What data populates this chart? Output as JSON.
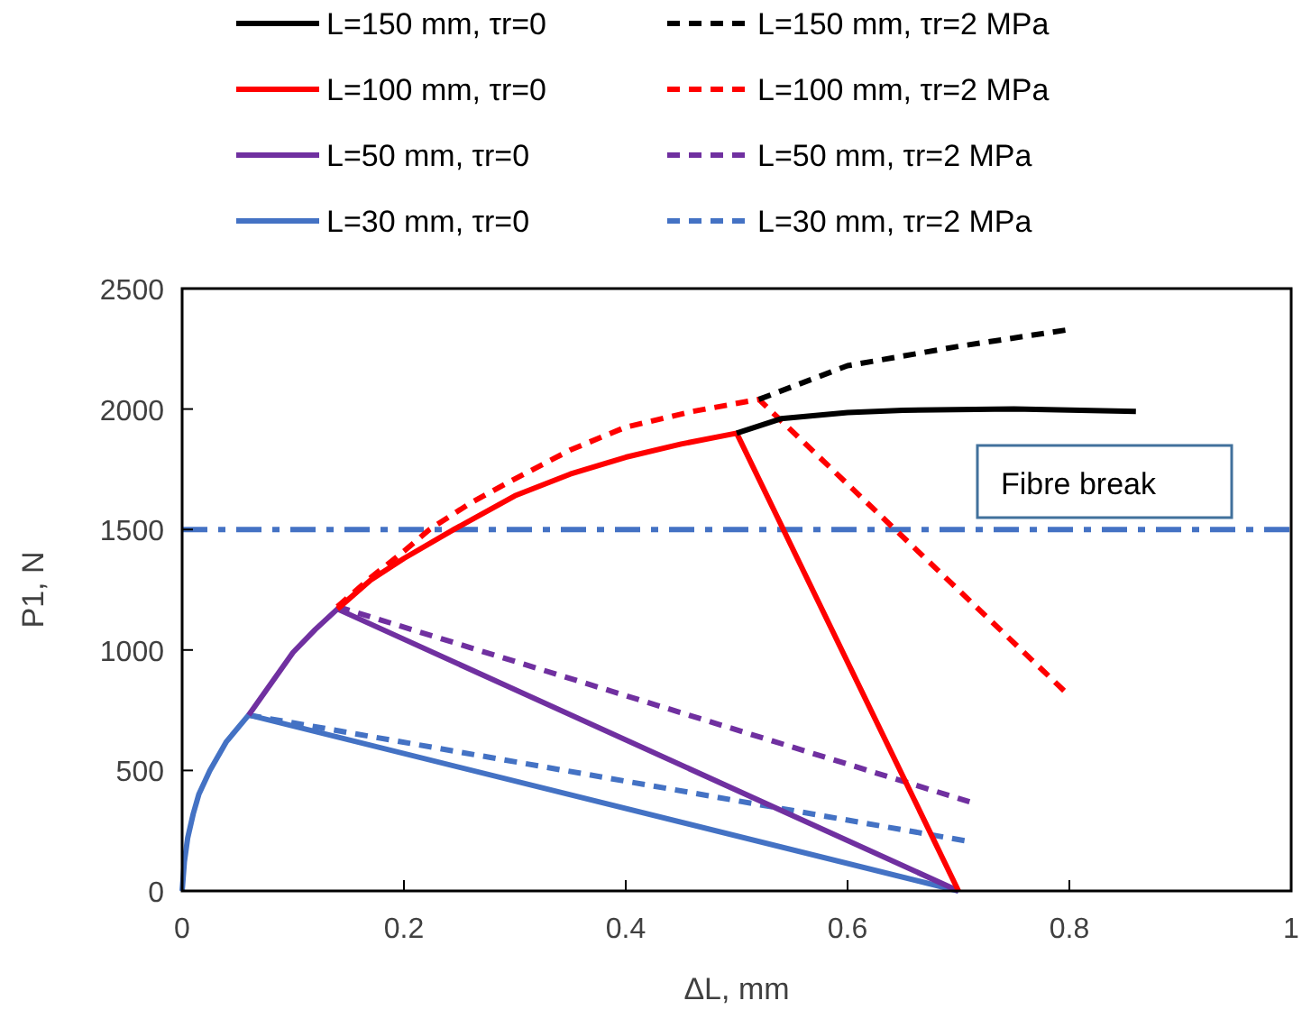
{
  "chart_data": {
    "type": "line",
    "xlabel": "ΔL, mm",
    "ylabel": "P1, N",
    "xlim": [
      0,
      1
    ],
    "xticks": [
      0,
      0.2,
      0.4,
      0.6,
      0.8,
      1
    ],
    "ylim": [
      0,
      2500
    ],
    "yticks": [
      0,
      500,
      1000,
      1500,
      2000,
      2500
    ],
    "grid": false,
    "legend": "top",
    "marker": "none",
    "series": [
      {
        "name": "L=150 mm, τr=0",
        "color": "#000000",
        "line_style": "solid",
        "x": [
          0.5,
          0.54,
          0.6,
          0.65,
          0.75,
          0.86
        ],
        "values": [
          1900,
          1960,
          1985,
          1995,
          2000,
          1990
        ]
      },
      {
        "name": "L=150 mm, τr=2 MPa",
        "color": "#000000",
        "line_style": "dashed",
        "x": [
          0.52,
          0.6,
          0.7,
          0.8
        ],
        "values": [
          2040,
          2180,
          2260,
          2330
        ]
      },
      {
        "name": "L=100 mm, τr=0",
        "color": "#ff0000",
        "line_style": "solid",
        "x": [
          0.14,
          0.17,
          0.2,
          0.245,
          0.3,
          0.35,
          0.4,
          0.45,
          0.5,
          0.7
        ],
        "values": [
          1170,
          1290,
          1380,
          1500,
          1640,
          1730,
          1800,
          1855,
          1900,
          0
        ]
      },
      {
        "name": "L=100 mm, τr=2 MPa",
        "color": "#ff0000",
        "line_style": "dashed",
        "x": [
          0.14,
          0.17,
          0.2,
          0.223,
          0.26,
          0.3,
          0.35,
          0.4,
          0.46,
          0.52,
          0.8
        ],
        "values": [
          1180,
          1300,
          1410,
          1500,
          1610,
          1710,
          1830,
          1925,
          1990,
          2040,
          810
        ]
      },
      {
        "name": "L=50 mm, τr=0",
        "color": "#7030a0",
        "line_style": "solid",
        "x": [
          0.06,
          0.08,
          0.1,
          0.12,
          0.14,
          0.7
        ],
        "values": [
          730,
          860,
          990,
          1085,
          1170,
          0
        ]
      },
      {
        "name": "L=50 mm, τr=2 MPa",
        "color": "#7030a0",
        "line_style": "dashed",
        "x": [
          0.14,
          0.71
        ],
        "values": [
          1180,
          370
        ]
      },
      {
        "name": "L=30 mm, τr=0",
        "color": "#4472c4",
        "line_style": "solid",
        "x": [
          0,
          0.002,
          0.005,
          0.01,
          0.015,
          0.025,
          0.04,
          0.06,
          0.7
        ],
        "values": [
          0,
          120,
          220,
          320,
          400,
          500,
          620,
          730,
          0
        ]
      },
      {
        "name": "L=30 mm, τr=2 MPa",
        "color": "#4472c4",
        "line_style": "dashed",
        "x": [
          0.06,
          0.71
        ],
        "values": [
          730,
          205
        ]
      }
    ],
    "ref_lines": [
      {
        "axis": "y",
        "value": 1500,
        "label": "Fibre break",
        "color": "#4472c4",
        "line_style": "dashdot"
      }
    ]
  }
}
